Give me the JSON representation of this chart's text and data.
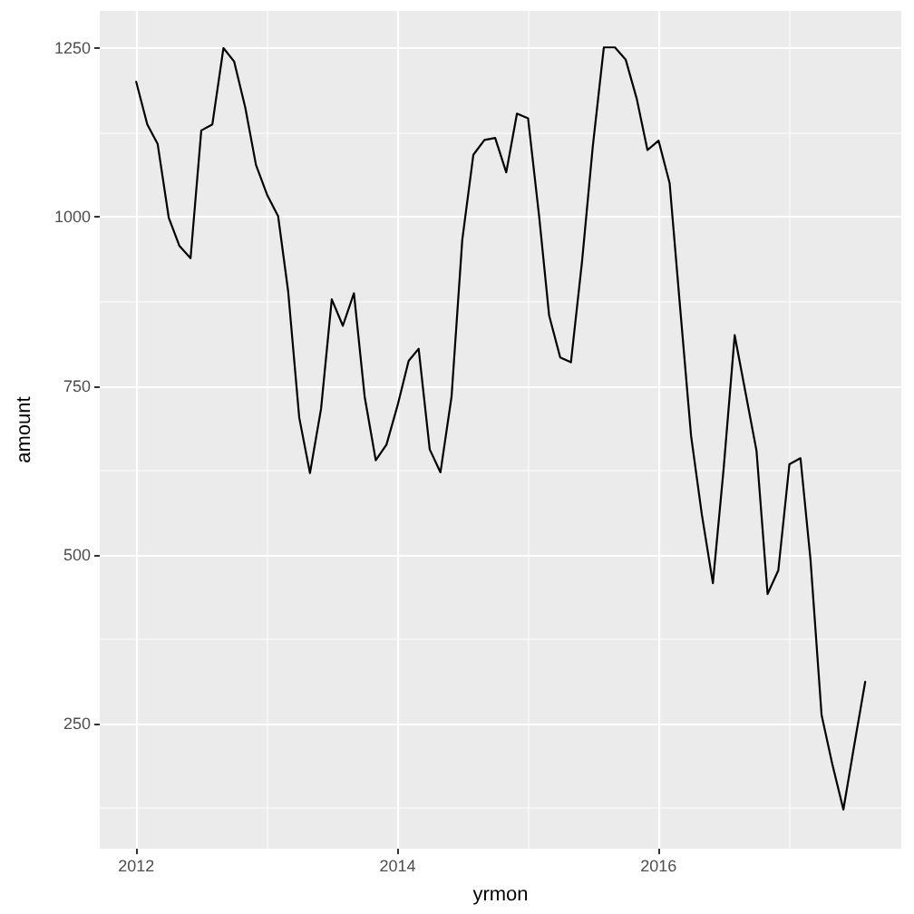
{
  "chart_data": {
    "type": "line",
    "xlabel": "yrmon",
    "ylabel": "amount",
    "x": [
      "2012-01",
      "2012-02",
      "2012-03",
      "2012-04",
      "2012-05",
      "2012-06",
      "2012-07",
      "2012-08",
      "2012-09",
      "2012-10",
      "2012-11",
      "2012-12",
      "2013-01",
      "2013-02",
      "2013-03",
      "2013-04",
      "2013-05",
      "2013-06",
      "2013-07",
      "2013-08",
      "2013-09",
      "2013-10",
      "2013-11",
      "2013-12",
      "2014-01",
      "2014-02",
      "2014-03",
      "2014-04",
      "2014-05",
      "2014-06",
      "2014-07",
      "2014-08",
      "2014-09",
      "2014-10",
      "2014-11",
      "2014-12",
      "2015-01",
      "2015-02",
      "2015-03",
      "2015-04",
      "2015-05",
      "2015-06",
      "2015-07",
      "2015-08",
      "2015-09",
      "2015-10",
      "2015-11",
      "2015-12",
      "2016-01",
      "2016-02",
      "2016-03",
      "2016-04",
      "2016-05",
      "2016-06",
      "2016-07",
      "2016-08",
      "2016-09",
      "2016-10",
      "2016-11",
      "2016-12",
      "2017-01",
      "2017-02",
      "2017-03",
      "2017-04",
      "2017-05",
      "2017-06",
      "2017-07",
      "2017-08"
    ],
    "series": [
      {
        "color": "#000000",
        "values": [
          1200,
          1137,
          1108,
          999,
          957,
          939,
          1128,
          1137,
          1250,
          1230,
          1162,
          1077,
          1033,
          1001,
          890,
          703,
          621,
          716,
          878,
          839,
          887,
          734,
          640,
          663,
          721,
          787,
          805,
          656,
          622,
          734,
          966,
          1092,
          1114,
          1117,
          1066,
          1153,
          1146,
          1001,
          854,
          792,
          785,
          934,
          1104,
          1251,
          1251,
          1233,
          1175,
          1099,
          1113,
          1050,
          868,
          676,
          560,
          458,
          627,
          825,
          738,
          654,
          442,
          477,
          634,
          643,
          493,
          263,
          190,
          123,
          217,
          312
        ]
      }
    ],
    "xlim": [
      "2011-09-21",
      "2017-11-10"
    ],
    "xticks": [
      {
        "value": "2012",
        "label": "2012"
      },
      {
        "value": "2014",
        "label": "2014"
      },
      {
        "value": "2016",
        "label": "2016"
      }
    ],
    "ylim": [
      65,
      1305
    ],
    "yticks": [
      250,
      500,
      750,
      1000,
      1250
    ],
    "grid": true,
    "marker": "none",
    "line_style": "solid"
  }
}
